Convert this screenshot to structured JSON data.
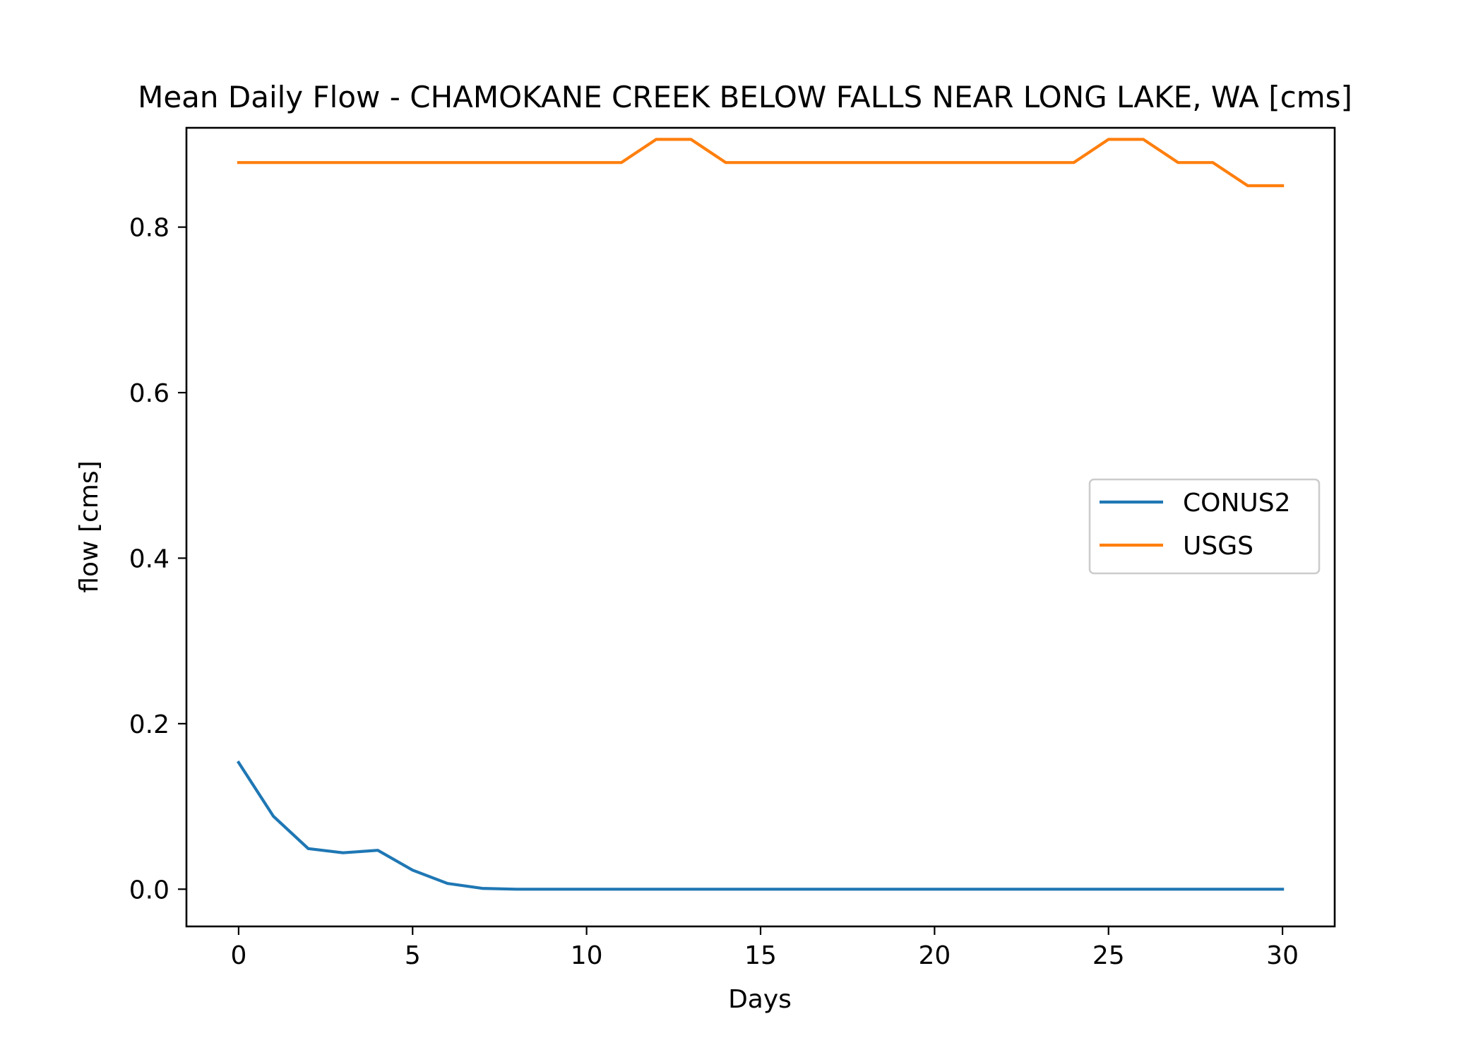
{
  "chart_data": {
    "type": "line",
    "title": "Mean Daily Flow - CHAMOKANE CREEK BELOW FALLS NEAR LONG LAKE, WA [cms]",
    "xlabel": "Days",
    "ylabel": "flow [cms]",
    "xlim": [
      -1.5,
      31.5
    ],
    "ylim": [
      -0.045,
      0.92
    ],
    "x_ticks": [
      0,
      5,
      10,
      15,
      20,
      25,
      30
    ],
    "x_tick_labels": [
      "0",
      "5",
      "10",
      "15",
      "20",
      "25",
      "30"
    ],
    "y_ticks": [
      0.0,
      0.2,
      0.4,
      0.6,
      0.8
    ],
    "y_tick_labels": [
      "0.0",
      "0.2",
      "0.4",
      "0.6",
      "0.8"
    ],
    "grid": false,
    "legend_position": "center-right",
    "x": [
      0,
      1,
      2,
      3,
      4,
      5,
      6,
      7,
      8,
      9,
      10,
      11,
      12,
      13,
      14,
      15,
      16,
      17,
      18,
      19,
      20,
      21,
      22,
      23,
      24,
      25,
      26,
      27,
      28,
      29,
      30
    ],
    "series": [
      {
        "name": "CONUS2",
        "color": "#1f77b4",
        "values": [
          0.153,
          0.088,
          0.049,
          0.044,
          0.047,
          0.023,
          0.007,
          0.001,
          0.0,
          0.0,
          0.0,
          0.0,
          0.0,
          0.0,
          0.0,
          0.0,
          0.0,
          0.0,
          0.0,
          0.0,
          0.0,
          0.0,
          0.0,
          0.0,
          0.0,
          0.0,
          0.0,
          0.0,
          0.0,
          0.0,
          0.0
        ]
      },
      {
        "name": "USGS",
        "color": "#ff7f0e",
        "values": [
          0.878,
          0.878,
          0.878,
          0.878,
          0.878,
          0.878,
          0.878,
          0.878,
          0.878,
          0.878,
          0.878,
          0.878,
          0.906,
          0.906,
          0.878,
          0.878,
          0.878,
          0.878,
          0.878,
          0.878,
          0.878,
          0.878,
          0.878,
          0.878,
          0.878,
          0.906,
          0.906,
          0.878,
          0.878,
          0.85,
          0.85
        ]
      }
    ]
  }
}
